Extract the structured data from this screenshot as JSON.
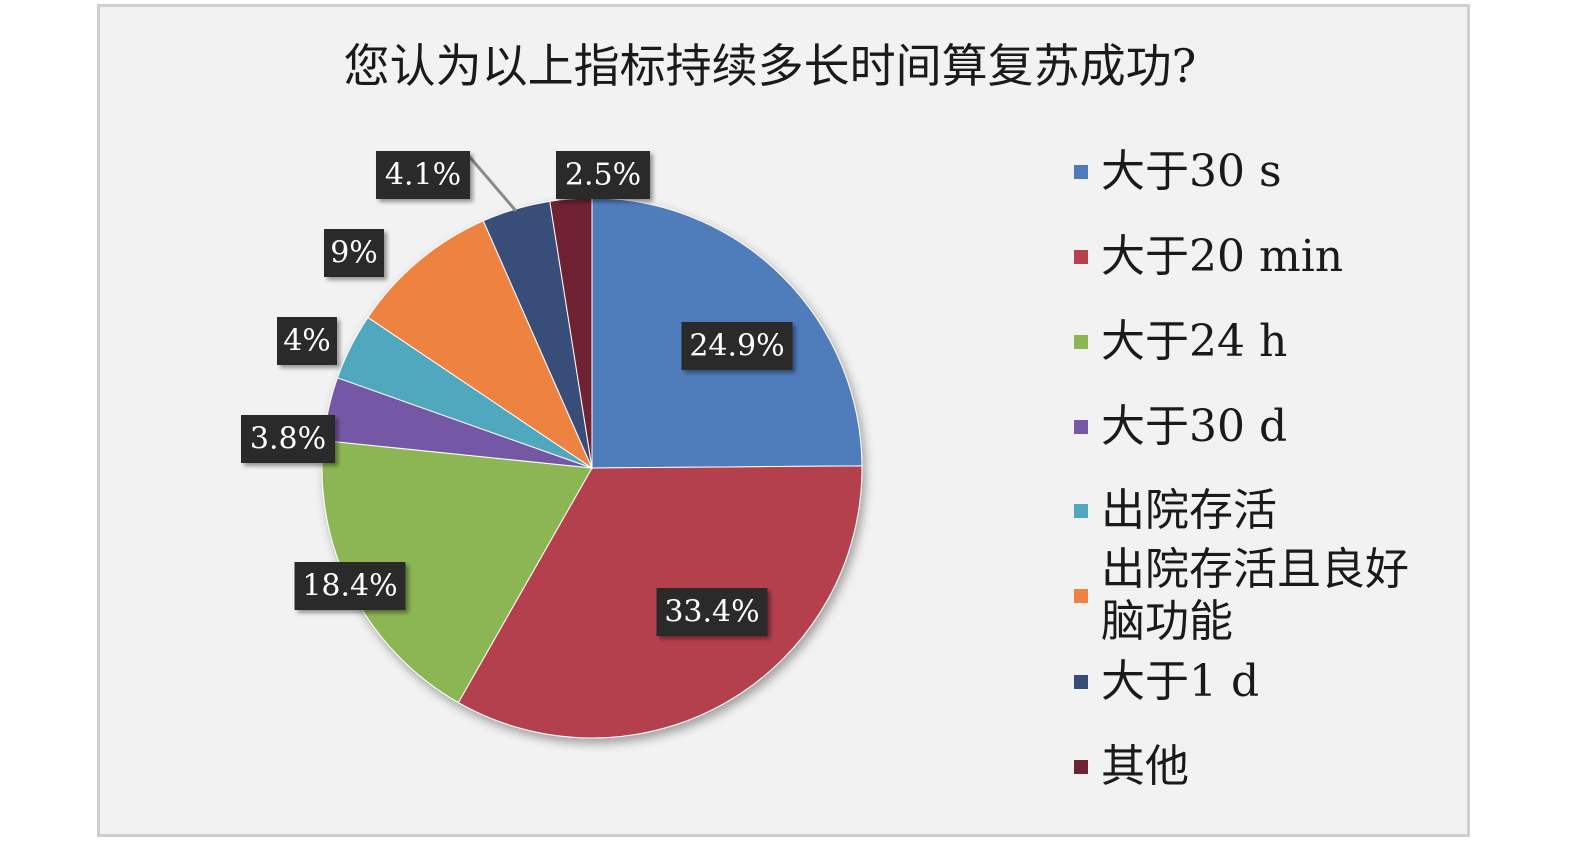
{
  "chart_data": {
    "type": "pie",
    "title": "您认为以上指标持续多长时间算复苏成功?",
    "slices": [
      {
        "label": "大于30 s",
        "value": 24.9,
        "display": "24.9%",
        "color": "#4f7bbb"
      },
      {
        "label": "大于20 min",
        "value": 33.4,
        "display": "33.4%",
        "color": "#b5414e"
      },
      {
        "label": "大于24 h",
        "value": 18.4,
        "display": "18.4%",
        "color": "#8cb653"
      },
      {
        "label": "大于30 d",
        "value": 3.8,
        "display": "3.8%",
        "color": "#7458a5"
      },
      {
        "label": "出院存活",
        "value": 4.0,
        "display": "4%",
        "color": "#4fa8be"
      },
      {
        "label": "出院存活且良好\n脑功能",
        "value": 9.0,
        "display": "9%",
        "color": "#ee8241"
      },
      {
        "label": "大于1 d",
        "value": 4.1,
        "display": "4.1%",
        "color": "#374d78"
      },
      {
        "label": "其他",
        "value": 2.5,
        "display": "2.5%",
        "color": "#6e2331"
      }
    ],
    "legend_position": "right"
  }
}
